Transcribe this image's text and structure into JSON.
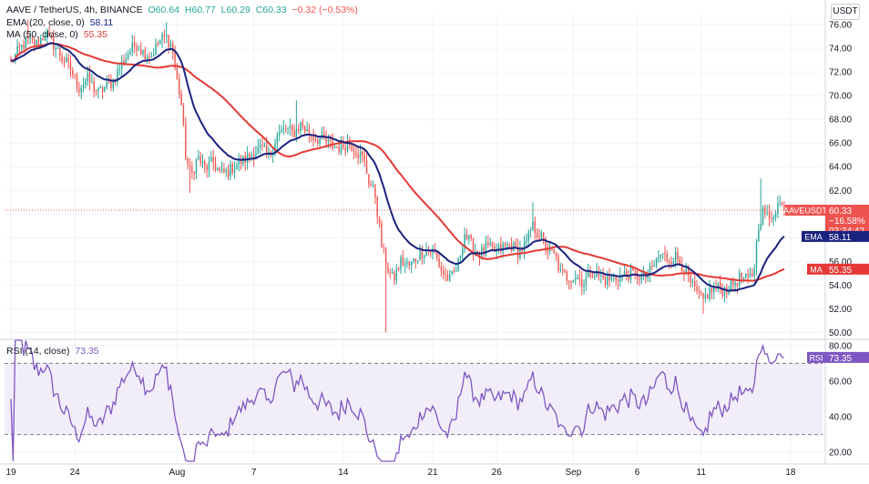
{
  "header": {
    "symbol": "AAVE / TetherUS, 4h, BINANCE",
    "open": "O60.64",
    "high": "H60.77",
    "low": "L60.29",
    "close": "C60.33",
    "change": "−0.32 (−0.53%)",
    "ema_label": "EMA (20, close, 0)",
    "ema_value": "58.11",
    "ma_label": "MA (50, close, 0)",
    "ma_value": "55.35",
    "rsi_label": "RSI (14, close)",
    "rsi_value": "73.35",
    "currency": "USDT"
  },
  "colors": {
    "up": "#26a69a",
    "down": "#ef5350",
    "ema": "#1a237e",
    "ma": "#e53935",
    "rsi": "#7e57c2",
    "rsi_band": "#ede7f6"
  },
  "chart_data": [
    {
      "type": "candlestick",
      "title": "AAVE / TetherUS, 4h, BINANCE",
      "y_axis": {
        "ticks": [
          "76.00",
          "74.00",
          "72.00",
          "70.00",
          "68.00",
          "66.00",
          "64.00",
          "62.00",
          "60.00",
          "58.00",
          "56.00",
          "54.00",
          "52.00",
          "50.00"
        ],
        "range": [
          49.5,
          77
        ]
      },
      "x_axis": {
        "ticks": [
          {
            "label": "19",
            "day": 0
          },
          {
            "label": "24",
            "day": 5
          },
          {
            "label": "Aug",
            "day": 13
          },
          {
            "label": "7",
            "day": 19
          },
          {
            "label": "14",
            "day": 26
          },
          {
            "label": "21",
            "day": 33
          },
          {
            "label": "26",
            "day": 38
          },
          {
            "label": "Sep",
            "day": 44
          },
          {
            "label": "6",
            "day": 49
          },
          {
            "label": "11",
            "day": 54
          },
          {
            "label": "18",
            "day": 61
          }
        ],
        "range": [
          -0.5,
          63.5
        ]
      },
      "price_anchors": [
        [
          0,
          72.8
        ],
        [
          0.6,
          73.8
        ],
        [
          1.2,
          74.6
        ],
        [
          2,
          74.4
        ],
        [
          2.7,
          75.2
        ],
        [
          3.4,
          74.2
        ],
        [
          4,
          73.2
        ],
        [
          4.7,
          72.2
        ],
        [
          5.3,
          70.6
        ],
        [
          6,
          71.4
        ],
        [
          6.8,
          70.2
        ],
        [
          7.5,
          70.8
        ],
        [
          8,
          71.2
        ],
        [
          8.6,
          72.6
        ],
        [
          9.2,
          73.6
        ],
        [
          9.8,
          74.4
        ],
        [
          10.4,
          73.6
        ],
        [
          11,
          73.4
        ],
        [
          11.6,
          74.6
        ],
        [
          12.1,
          75.0
        ],
        [
          12.6,
          74.2
        ],
        [
          12.9,
          71.8
        ],
        [
          13.3,
          69.6
        ],
        [
          13.7,
          64.6
        ],
        [
          14.1,
          63.2
        ],
        [
          14.6,
          64.8
        ],
        [
          15.2,
          63.8
        ],
        [
          15.8,
          64.4
        ],
        [
          16.4,
          63.4
        ],
        [
          17,
          63.6
        ],
        [
          17.6,
          64.2
        ],
        [
          18.3,
          64.6
        ],
        [
          19,
          65.2
        ],
        [
          19.6,
          65.6
        ],
        [
          20.2,
          64.8
        ],
        [
          20.8,
          66.6
        ],
        [
          21.5,
          67.2
        ],
        [
          22.1,
          66.8
        ],
        [
          22.7,
          67.6
        ],
        [
          23.3,
          66.8
        ],
        [
          23.9,
          66.4
        ],
        [
          24.5,
          66.2
        ],
        [
          25.1,
          65.8
        ],
        [
          25.7,
          65.6
        ],
        [
          26.4,
          66.0
        ],
        [
          27,
          65.4
        ],
        [
          27.6,
          64.6
        ],
        [
          28,
          62.8
        ],
        [
          28.5,
          61.6
        ],
        [
          29,
          57.4
        ],
        [
          29.4,
          55.6
        ],
        [
          29.9,
          54.4
        ],
        [
          30.5,
          56.0
        ],
        [
          31.2,
          55.6
        ],
        [
          31.9,
          56.6
        ],
        [
          32.5,
          57.0
        ],
        [
          33.1,
          56.8
        ],
        [
          33.7,
          55.2
        ],
        [
          34.3,
          54.4
        ],
        [
          34.9,
          55.4
        ],
        [
          35.5,
          58.4
        ],
        [
          36.1,
          57.2
        ],
        [
          36.7,
          56.6
        ],
        [
          37.3,
          57.2
        ],
        [
          37.9,
          56.8
        ],
        [
          38.5,
          57.2
        ],
        [
          39.1,
          57.4
        ],
        [
          39.7,
          56.8
        ],
        [
          40.3,
          57.4
        ],
        [
          40.8,
          59.0
        ],
        [
          41.4,
          58.2
        ],
        [
          42,
          57.0
        ],
        [
          42.6,
          56.4
        ],
        [
          43,
          55.0
        ],
        [
          43.6,
          54.6
        ],
        [
          44.2,
          54.8
        ],
        [
          44.8,
          54.2
        ],
        [
          45.4,
          55.2
        ],
        [
          46,
          54.8
        ],
        [
          46.6,
          54.4
        ],
        [
          47.2,
          54.6
        ],
        [
          47.8,
          54.8
        ],
        [
          48.4,
          55.0
        ],
        [
          49,
          54.8
        ],
        [
          49.6,
          54.6
        ],
        [
          50.2,
          55.4
        ],
        [
          50.8,
          56.6
        ],
        [
          51.4,
          56.2
        ],
        [
          52,
          56.4
        ],
        [
          52.6,
          55.6
        ],
        [
          53.1,
          54.2
        ],
        [
          53.6,
          53.4
        ],
        [
          54.1,
          52.6
        ],
        [
          54.6,
          53.4
        ],
        [
          55.2,
          53.8
        ],
        [
          55.8,
          53.6
        ],
        [
          56.4,
          54.0
        ],
        [
          57,
          54.6
        ],
        [
          57.6,
          54.4
        ],
        [
          58.1,
          55.0
        ],
        [
          58.5,
          59.2
        ],
        [
          58.9,
          60.4
        ],
        [
          59.3,
          59.4
        ],
        [
          59.7,
          60.2
        ],
        [
          60.1,
          61.0
        ],
        [
          60.5,
          60.33
        ]
      ],
      "spike_lows": [
        [
          29.3,
          50.0
        ],
        [
          14.0,
          61.8
        ],
        [
          54.2,
          51.6
        ]
      ],
      "spike_highs": [
        [
          58.6,
          63.0
        ],
        [
          22.4,
          69.6
        ],
        [
          40.8,
          61.0
        ],
        [
          12.2,
          76.2
        ],
        [
          1.4,
          76.4
        ],
        [
          60.2,
          61.6
        ]
      ],
      "ema": {
        "name": "EMA",
        "last": 58.11
      },
      "ma": {
        "name": "MA",
        "last": 55.35
      },
      "last_price_label": "AAVEUSDT",
      "last_price": "60.33",
      "last_change": "−16.58%",
      "countdown": "03:34:42"
    },
    {
      "type": "line",
      "title": "RSI (14, close)",
      "y_axis": {
        "ticks": [
          "80.00",
          "60.00",
          "40.00",
          "20.00"
        ],
        "range": [
          15,
          83
        ]
      },
      "band": [
        30,
        70
      ],
      "last": 73.35,
      "label": "RSI"
    }
  ]
}
